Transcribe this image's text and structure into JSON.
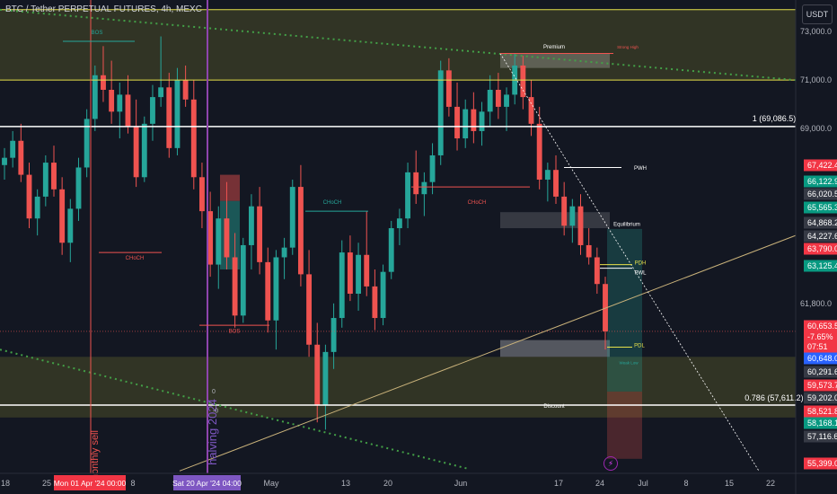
{
  "header": {
    "title": "BTC / Tether PERPETUAL FUTURES, 4h, MEXC",
    "currency": "USDT"
  },
  "colors": {
    "bg": "#131722",
    "up": "#26a69a",
    "down": "#ef5350",
    "grid": "#2a2e39",
    "zone_yellow": "#6b6b2a",
    "purple": "#8e44ad",
    "green_dots": "#43a047",
    "white": "#ffffff",
    "yellow_line": "#e6e04a"
  },
  "chart_data": {
    "type": "candlestick",
    "ylim": [
      54800,
      74300
    ],
    "y_ticks": [
      "73,000.0",
      "71,000.0",
      "69,000.0",
      "61,800.0"
    ],
    "x_ticks": [
      "18",
      "25",
      "8",
      "May",
      "13",
      "20",
      "Jun",
      "17",
      "24",
      "Jul",
      "8",
      "15",
      "22"
    ],
    "x_highlight": [
      {
        "label": "Mon 01 Apr '24  00:00",
        "color": "#f23645"
      },
      {
        "label": "Sat 20 Apr '24  04:00",
        "color": "#7e57c2"
      }
    ],
    "price_labels": [
      {
        "text": "67,422.4",
        "color": "#f23645"
      },
      {
        "text": "66,122.9",
        "color": "#089981"
      },
      {
        "text": "66,020.5",
        "color": "#363a45"
      },
      {
        "text": "65,565.3",
        "color": "#089981"
      },
      {
        "text": "64,868.2",
        "color": "#363a45"
      },
      {
        "text": "64,227.6",
        "color": "#363a45"
      },
      {
        "text": "63,790.0",
        "color": "#f23645"
      },
      {
        "text": "63,125.4",
        "color": "#089981"
      },
      {
        "text": "60,653.5",
        "color": "#f23645"
      },
      {
        "text": "-7.65%",
        "color": "#f23645"
      },
      {
        "text": "07:51",
        "color": "#f23645"
      },
      {
        "text": "60,648.0",
        "color": "#2962ff"
      },
      {
        "text": "60,291.6",
        "color": "#363a45"
      },
      {
        "text": "59,573.7",
        "color": "#f23645"
      },
      {
        "text": "59,202.0",
        "color": "#363a45"
      },
      {
        "text": "58,521.8",
        "color": "#f23645"
      },
      {
        "text": "58,168.1",
        "color": "#089981"
      },
      {
        "text": "57,116.6",
        "color": "#363a45"
      },
      {
        "text": "55,399.0",
        "color": "#f23645"
      }
    ],
    "annotations": [
      {
        "text": "BOS",
        "color": "#26a69a"
      },
      {
        "text": "CHoCH",
        "color": "#ef5350"
      },
      {
        "text": "CHoCH",
        "color": "#26a69a"
      },
      {
        "text": "BOS",
        "color": "#ef5350"
      },
      {
        "text": "CHoCH",
        "color": "#ef5350"
      },
      {
        "text": "Premium",
        "color": "#ffffff"
      },
      {
        "text": "Strong High",
        "color": "#ef5350"
      },
      {
        "text": "Equilibrium",
        "color": "#ffffff"
      },
      {
        "text": "Discount",
        "color": "#ffffff"
      },
      {
        "text": "PWH",
        "color": "#ffffff"
      },
      {
        "text": "PDH",
        "color": "#e6e04a"
      },
      {
        "text": "PWL",
        "color": "#ffffff"
      },
      {
        "text": "PDL",
        "color": "#e6e04a"
      },
      {
        "text": "Weak Low",
        "color": "#26a69a"
      },
      {
        "text": "1 (69,086.5)",
        "color": "#ffffff"
      },
      {
        "text": "0.786 (57,611.2)",
        "color": "#ffffff"
      },
      {
        "text": "monthly sell",
        "color": "#ef5350"
      },
      {
        "text": "halving 2024",
        "color": "#7e57c2"
      },
      {
        "text": "0",
        "color": "#b2b5be"
      },
      {
        "text": "-0",
        "color": "#b2b5be"
      }
    ],
    "series": [
      {
        "values": [
          [
            67500,
            68200,
            66900,
            67800
          ],
          [
            67800,
            68900,
            67400,
            68500
          ],
          [
            68500,
            69200,
            66800,
            67100
          ],
          [
            67100,
            67600,
            64900,
            65300
          ],
          [
            65300,
            66500,
            64600,
            66200
          ],
          [
            66200,
            67900,
            65800,
            67600
          ],
          [
            67600,
            68300,
            66200,
            66500
          ],
          [
            66500,
            67000,
            63800,
            64300
          ],
          [
            64300,
            66100,
            63500,
            65700
          ],
          [
            65700,
            67800,
            65200,
            67400
          ],
          [
            67400,
            69800,
            67000,
            69400
          ],
          [
            69400,
            71600,
            68900,
            71200
          ],
          [
            71200,
            72400,
            70100,
            70600
          ],
          [
            70600,
            71800,
            69200,
            69700
          ],
          [
            69700,
            70900,
            68600,
            70400
          ],
          [
            70400,
            71200,
            68800,
            69100
          ],
          [
            69100,
            70200,
            66600,
            67000
          ],
          [
            67000,
            69500,
            66800,
            69200
          ],
          [
            69200,
            70800,
            68500,
            70300
          ],
          [
            70300,
            72800,
            69900,
            70700
          ],
          [
            70700,
            71300,
            67800,
            68200
          ],
          [
            68200,
            71500,
            67900,
            71000
          ],
          [
            71000,
            71600,
            69900,
            70200
          ],
          [
            70200,
            71000,
            66500,
            67000
          ],
          [
            67000,
            67600,
            64900,
            65600
          ],
          [
            65600,
            66400,
            62900,
            63400
          ],
          [
            63400,
            65800,
            62400,
            65300
          ],
          [
            65300,
            66800,
            63200,
            63700
          ],
          [
            63700,
            64700,
            60800,
            61300
          ],
          [
            61300,
            64500,
            61000,
            64200
          ],
          [
            64200,
            66300,
            63200,
            65800
          ],
          [
            65800,
            66600,
            63000,
            63500
          ],
          [
            63500,
            64100,
            60600,
            61100
          ],
          [
            61100,
            64000,
            59900,
            63700
          ],
          [
            63700,
            64500,
            62800,
            64100
          ],
          [
            64100,
            66900,
            63800,
            66600
          ],
          [
            66600,
            67500,
            62500,
            63000
          ],
          [
            63000,
            64000,
            59600,
            60100
          ],
          [
            60100,
            61000,
            56900,
            57600
          ],
          [
            57600,
            60100,
            56600,
            59800
          ],
          [
            59800,
            61800,
            59100,
            61200
          ],
          [
            61200,
            64400,
            60800,
            63900
          ],
          [
            63900,
            64600,
            61900,
            62200
          ],
          [
            62200,
            64300,
            61500,
            63800
          ],
          [
            63800,
            65600,
            62100,
            62500
          ],
          [
            62500,
            63200,
            60700,
            61200
          ],
          [
            61200,
            63400,
            60900,
            63100
          ],
          [
            63100,
            65200,
            62800,
            64900
          ],
          [
            64900,
            65700,
            64200,
            65300
          ],
          [
            65300,
            67600,
            64900,
            67200
          ],
          [
            67200,
            68100,
            65900,
            66300
          ],
          [
            66300,
            67200,
            65400,
            66800
          ],
          [
            66800,
            68400,
            66300,
            67900
          ],
          [
            67900,
            71800,
            67500,
            71400
          ],
          [
            71400,
            71900,
            69500,
            69900
          ],
          [
            69900,
            70900,
            68100,
            68600
          ],
          [
            68600,
            70200,
            68200,
            69800
          ],
          [
            69800,
            70500,
            68400,
            68900
          ],
          [
            68900,
            70100,
            68300,
            69700
          ],
          [
            69700,
            71200,
            69100,
            70600
          ],
          [
            70600,
            71300,
            69400,
            69900
          ],
          [
            69900,
            70700,
            68900,
            70400
          ],
          [
            70400,
            72100,
            70000,
            71600
          ],
          [
            71600,
            72000,
            69800,
            70300
          ],
          [
            70300,
            71000,
            68700,
            69200
          ],
          [
            69200,
            69900,
            66500,
            66900
          ],
          [
            66900,
            67600,
            66000,
            67300
          ],
          [
            67300,
            67900,
            65900,
            66200
          ],
          [
            66200,
            66800,
            64600,
            65000
          ],
          [
            65000,
            66100,
            64300,
            65800
          ],
          [
            65800,
            66300,
            63800,
            64200
          ],
          [
            64200,
            64900,
            63400,
            63700
          ],
          [
            63700,
            64100,
            62200,
            62600
          ],
          [
            62600,
            62900,
            59900,
            60650
          ]
        ]
      }
    ]
  }
}
